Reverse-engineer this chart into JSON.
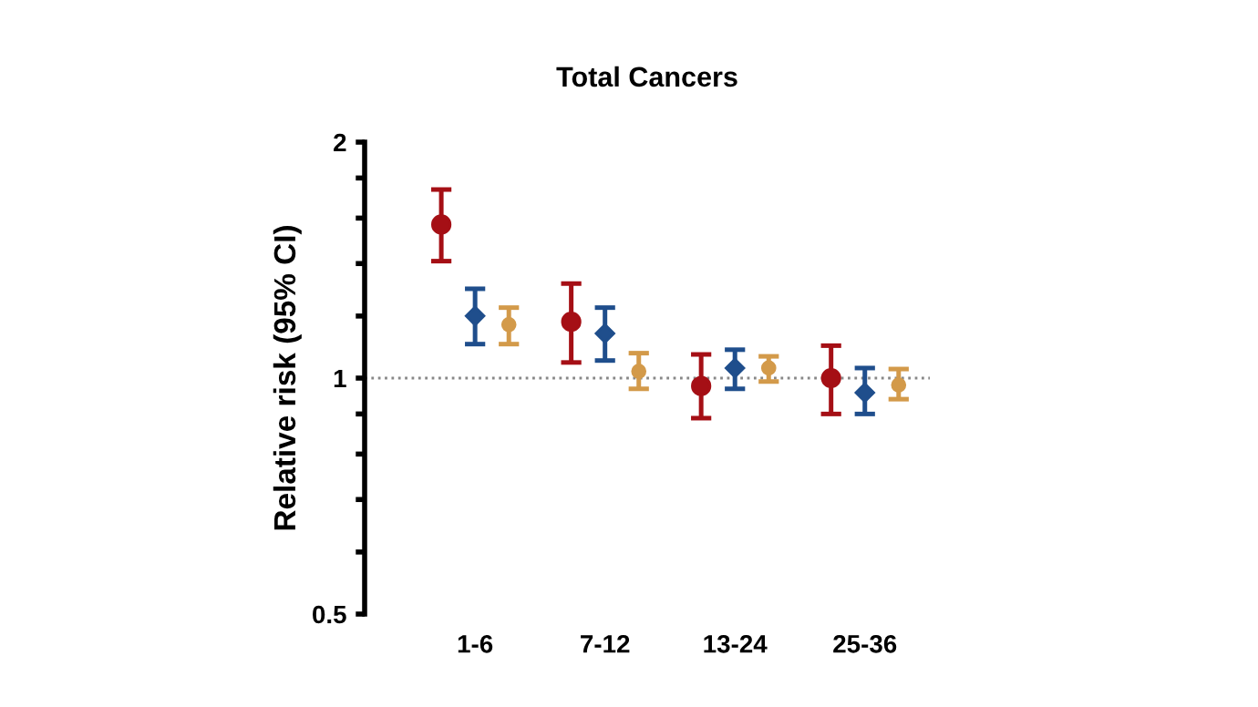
{
  "chart_data": {
    "type": "scatter",
    "title": "Total Cancers",
    "ylabel": "Relative risk (95% CI)",
    "categories": [
      "1-6",
      "7-12",
      "13-24",
      "25-36"
    ],
    "series": [
      {
        "color": "#a50f15",
        "marker": "circle",
        "values": [
          1.57,
          1.18,
          0.977,
          1.0
        ],
        "errors": [
          [
            1.41,
            1.74
          ],
          [
            1.047,
            1.32
          ],
          [
            0.889,
            1.072
          ],
          [
            0.9,
            1.1
          ]
        ]
      },
      {
        "color": "#1f4e8c",
        "marker": "diamond",
        "values": [
          1.2,
          1.14,
          1.03,
          0.958
        ],
        "errors": [
          [
            1.105,
            1.3
          ],
          [
            1.053,
            1.23
          ],
          [
            0.969,
            1.087
          ],
          [
            0.9,
            1.03
          ]
        ]
      },
      {
        "color": "#d39a4a",
        "marker": "circle",
        "values": [
          1.17,
          1.02,
          1.03,
          0.98
        ],
        "errors": [
          [
            1.105,
            1.23
          ],
          [
            0.969,
            1.076
          ],
          [
            0.99,
            1.066
          ],
          [
            0.94,
            1.027
          ]
        ]
      }
    ],
    "log": "y",
    "ylim": [
      0.5,
      2
    ],
    "yticks": [
      0.5,
      {
        "value": 0.6,
        "label": null
      },
      {
        "value": 0.7,
        "label": null
      },
      {
        "value": 0.8,
        "label": null
      },
      {
        "value": 0.9,
        "label": null
      },
      1,
      {
        "value": 1.2,
        "label": null
      },
      {
        "value": 1.4,
        "label": null
      },
      {
        "value": 1.6,
        "label": null
      },
      {
        "value": 1.8,
        "label": null
      },
      2
    ],
    "ref_lines": [
      {
        "axis": "y",
        "value": 1,
        "color": "#888888",
        "line_style": "dotted"
      }
    ],
    "grid": false,
    "legend": false
  }
}
